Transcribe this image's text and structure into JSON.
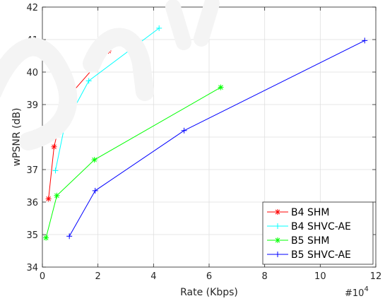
{
  "chart_data": {
    "type": "line",
    "xlabel": "Rate (Kbps)",
    "ylabel": "wPSNR (dB)",
    "x_multiplier_base": "#10",
    "x_multiplier_exp": "4",
    "xlim": [
      0,
      12
    ],
    "ylim": [
      34,
      42
    ],
    "xticks": [
      "0",
      "2",
      "4",
      "6",
      "8",
      "10",
      "12"
    ],
    "yticks": [
      "34",
      "35",
      "36",
      "37",
      "38",
      "39",
      "40",
      "41",
      "42"
    ],
    "grid": true,
    "legend_position": "bottom-right",
    "series": [
      {
        "name": "B4 SHM",
        "color": "#ff0000",
        "marker": "asterisk",
        "x": [
          0.22,
          0.42,
          0.82,
          2.38
        ],
        "y": [
          36.1,
          37.7,
          39.13,
          40.65
        ]
      },
      {
        "name": "B4 SHVC-AE",
        "color": "#00ffff",
        "marker": "plus",
        "x": [
          0.47,
          0.8,
          1.67,
          4.2
        ],
        "y": [
          36.97,
          38.35,
          39.73,
          41.35
        ]
      },
      {
        "name": "B5 SHM",
        "color": "#00ff00",
        "marker": "asterisk",
        "x": [
          0.13,
          0.52,
          1.87,
          6.42
        ],
        "y": [
          34.9,
          36.2,
          37.3,
          39.53
        ]
      },
      {
        "name": "B5 SHVC-AE",
        "color": "#0000ff",
        "marker": "plus",
        "x": [
          0.97,
          1.9,
          5.1,
          11.6
        ],
        "y": [
          34.95,
          36.35,
          38.2,
          40.97
        ]
      }
    ]
  }
}
